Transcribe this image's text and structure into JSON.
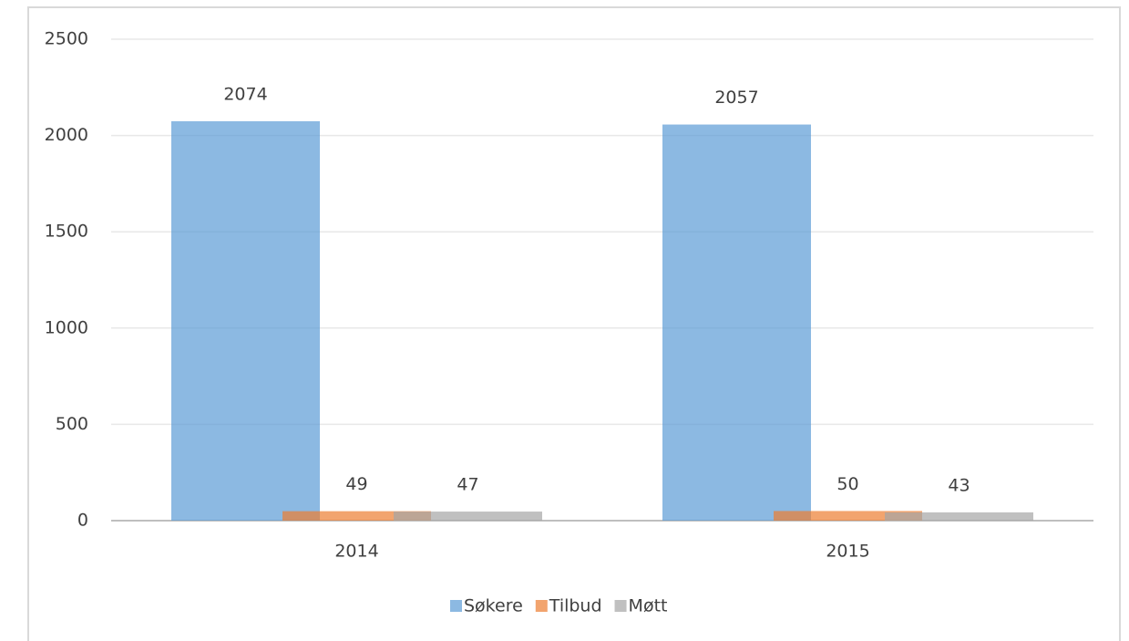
{
  "chart_data": {
    "type": "bar",
    "categories": [
      "2014",
      "2015"
    ],
    "series": [
      {
        "name": "Søkere",
        "color": "#5b9bd5",
        "values": [
          2074,
          2057
        ]
      },
      {
        "name": "Tilbud",
        "color": "#ed7d31",
        "values": [
          49,
          50
        ]
      },
      {
        "name": "Møtt",
        "color": "#a5a5a5",
        "values": [
          47,
          43
        ]
      }
    ],
    "ylim": [
      0,
      2500
    ],
    "yticks": [
      0,
      500,
      1000,
      1500,
      2000,
      2500
    ],
    "grid": true,
    "legend": "bottom"
  }
}
